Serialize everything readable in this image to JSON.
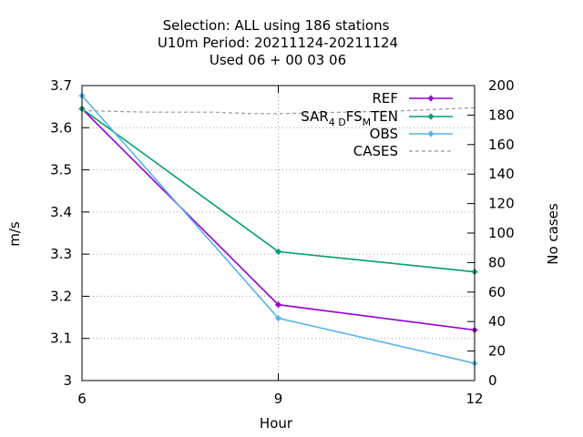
{
  "chart_data": {
    "type": "line",
    "title_lines": [
      "Selection: ALL using   186 stations",
      "U10m   Period: 20211124-20211124",
      "Used  06 + 00 03 06"
    ],
    "xlabel": "Hour",
    "ylabel": "m/s",
    "y2label": "No cases",
    "x": [
      6,
      9,
      12
    ],
    "xlim": [
      6,
      12
    ],
    "xticks": [
      6,
      9,
      12
    ],
    "ylim": [
      3.0,
      3.7
    ],
    "yticks": [
      3,
      3.1,
      3.2,
      3.3,
      3.4,
      3.5,
      3.6,
      3.7
    ],
    "y2lim": [
      0,
      200
    ],
    "y2ticks": [
      0,
      20,
      40,
      60,
      80,
      100,
      120,
      140,
      160,
      180,
      200
    ],
    "grid": true,
    "legend_position": "top-right",
    "series": [
      {
        "name": "REF",
        "axis": "y",
        "color": "#9400d3",
        "dash": false,
        "marker": true,
        "values": [
          3.645,
          3.18,
          3.12
        ]
      },
      {
        "name": "SAR_4DFS_MTEN",
        "legend_parts": [
          "SAR",
          "4 D",
          "FS",
          "M",
          "TEN"
        ],
        "axis": "y",
        "color": "#009e73",
        "dash": false,
        "marker": true,
        "values": [
          3.645,
          3.306,
          3.258
        ]
      },
      {
        "name": "OBS",
        "axis": "y",
        "color": "#56b4e9",
        "dash": false,
        "marker": true,
        "values": [
          3.676,
          3.148,
          3.041
        ]
      },
      {
        "name": "CASES",
        "axis": "y2",
        "color": "#999999",
        "dash": true,
        "marker": false,
        "x": [
          6,
          7,
          8,
          8.6,
          9,
          10,
          11,
          12
        ],
        "values": [
          183,
          182,
          182,
          181,
          181,
          182,
          183,
          185
        ]
      }
    ]
  }
}
